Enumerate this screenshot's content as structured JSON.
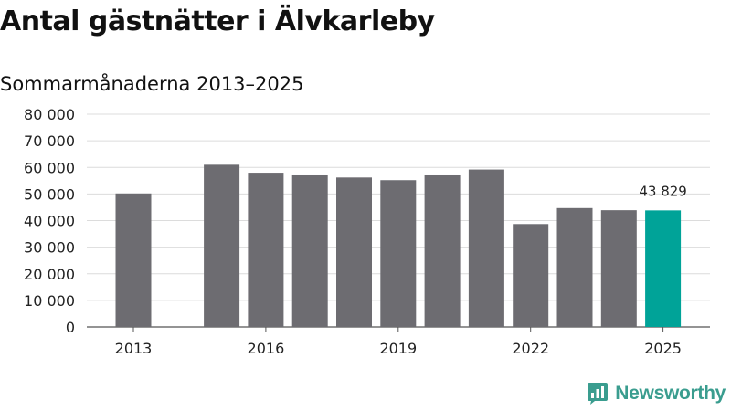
{
  "title": "Antal gästnätter i Älvkarleby",
  "subtitle": "Sommarmånaderna 2013–2025",
  "brand": {
    "name": "Newsworthy",
    "icon": "bar-chart-bubble-icon",
    "color": "#3a9d8f"
  },
  "chart_data": {
    "type": "bar",
    "x": [
      2013,
      2014,
      2015,
      2016,
      2017,
      2018,
      2019,
      2020,
      2021,
      2022,
      2023,
      2024,
      2025
    ],
    "values": [
      50200,
      null,
      61000,
      58000,
      57000,
      56200,
      55200,
      57000,
      59200,
      38700,
      44700,
      43900,
      43829
    ],
    "ylim": [
      0,
      80000
    ],
    "yticks": [
      0,
      10000,
      20000,
      30000,
      40000,
      50000,
      60000,
      70000,
      80000
    ],
    "ytick_labels": [
      "0",
      "10 000",
      "20 000",
      "30 000",
      "40 000",
      "50 000",
      "60 000",
      "70 000",
      "80 000"
    ],
    "xticks": [
      2013,
      2016,
      2019,
      2022,
      2025
    ],
    "xtick_labels": [
      "2013",
      "2016",
      "2019",
      "2022",
      "2025"
    ],
    "grid": true,
    "bar_color": "#6d6c71",
    "highlight_color": "#00a398",
    "highlight_x": 2025,
    "data_labels": [
      {
        "x": 2025,
        "value": 43829,
        "text": "43 829"
      }
    ]
  }
}
